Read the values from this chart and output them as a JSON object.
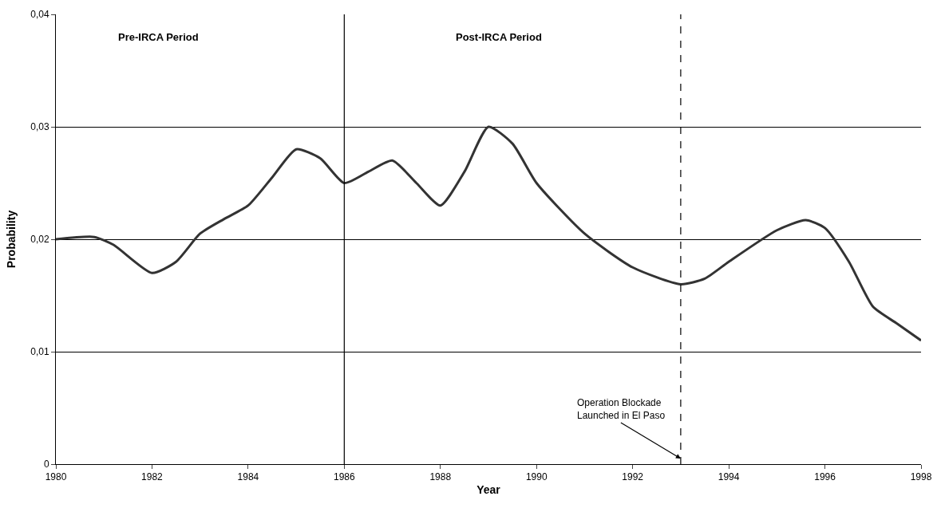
{
  "chart_data": {
    "type": "line",
    "xlabel": "Year",
    "ylabel": "Probability",
    "x": [
      1980,
      1980.8,
      1981.2,
      1982,
      1982.5,
      1983,
      1983.5,
      1984,
      1984.5,
      1985,
      1985.5,
      1986,
      1986.5,
      1987,
      1987.5,
      1988,
      1988.5,
      1989,
      1989.5,
      1990,
      1991,
      1992,
      1993,
      1993.5,
      1994,
      1995,
      1995.6,
      1996,
      1996.5,
      1997,
      1997.5,
      1998
    ],
    "series": [
      {
        "color": "#333333",
        "values": [
          0.02,
          0.0202,
          0.0195,
          0.017,
          0.018,
          0.0205,
          0.0218,
          0.023,
          0.0255,
          0.028,
          0.0272,
          0.025,
          0.026,
          0.027,
          0.025,
          0.023,
          0.026,
          0.03,
          0.0285,
          0.025,
          0.0205,
          0.0175,
          0.016,
          0.0165,
          0.018,
          0.0208,
          0.0217,
          0.021,
          0.018,
          0.014,
          0.0125,
          0.011
        ]
      }
    ],
    "xlim": [
      1980,
      1998
    ],
    "xticks": [
      1980,
      1982,
      1984,
      1986,
      1988,
      1990,
      1992,
      1994,
      1996,
      1998
    ],
    "ylim": [
      0,
      0.04
    ],
    "yticks": [
      0,
      {
        "value": 0.01,
        "label": "0,01"
      },
      {
        "value": 0.02,
        "label": "0,02"
      },
      {
        "value": 0.03,
        "label": "0,03"
      },
      {
        "value": 0.04,
        "label": "0,04"
      }
    ],
    "grid": "y",
    "legend": false,
    "marker": "none",
    "line_style": "solid",
    "ref_lines": [
      {
        "axis": "x",
        "value": 1986,
        "color": "#000000",
        "line_style": "solid"
      },
      {
        "axis": "x",
        "value": 1993,
        "color": "#000000",
        "line_style": "dashed"
      }
    ],
    "annotations": [
      "Pre-IRCA Period",
      "Post-IRCA Period",
      {
        "text": "Operation Blockade\nLaunched in El Paso",
        "x": 1993,
        "y": 0.0005
      }
    ]
  }
}
